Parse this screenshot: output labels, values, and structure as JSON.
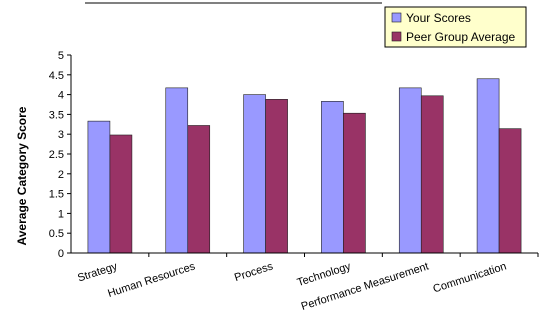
{
  "chart_data": {
    "type": "bar",
    "ylabel": "Average Category Score",
    "ylim": [
      0,
      5
    ],
    "yticks": [
      0,
      0.5,
      1,
      1.5,
      2,
      2.5,
      3,
      3.5,
      4,
      4.5,
      5
    ],
    "ytick_labels": [
      "0",
      "0.5",
      "1",
      "1.5",
      "2",
      "2.5",
      "3",
      "3.5",
      "4",
      "4.5",
      "5"
    ],
    "grid": false,
    "legend_position": "top-right",
    "categories": [
      "Strategy",
      "Human Resources",
      "Process",
      "Technology",
      "Performance Measurement",
      "Communication"
    ],
    "series": [
      {
        "name": "Your Scores",
        "color": "#9999ff",
        "values": [
          3.33,
          4.17,
          4.0,
          3.83,
          4.17,
          4.4
        ],
        "labels": [
          "3.33",
          "4.17",
          "4.0",
          "3.83",
          "4.17",
          "4.4"
        ]
      },
      {
        "name": "Peer Group Average",
        "color": "#993366",
        "values": [
          2.98,
          3.22,
          3.88,
          3.53,
          3.97,
          3.14
        ],
        "labels": [
          "2.98",
          "3.22",
          "3.88",
          "3.53",
          "3.97",
          "3.14"
        ]
      }
    ]
  }
}
